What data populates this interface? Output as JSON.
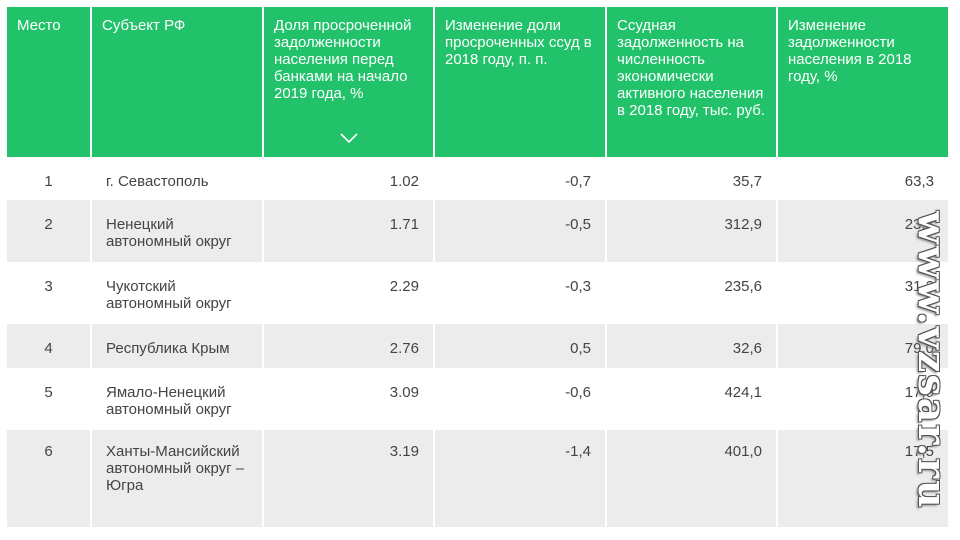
{
  "table": {
    "headers": [
      "Место",
      "Субъект РФ",
      "Доля просроченной задолженности населения перед банками на начало 2019 года, %",
      "Изменение доли просроченных ссуд в 2018 году, п. п.",
      "Ссудная задолженность на численность экономически активного населения в 2018 году, тыс. руб.",
      "Изменение задолженности населения в 2018 году, %"
    ],
    "sort_icon": "chevron-down-icon",
    "rows": [
      [
        "1",
        "г. Севастополь",
        "1.02",
        "-0,7",
        "35,7",
        "63,3"
      ],
      [
        "2",
        "Ненецкий автономный округ",
        "1.71",
        "-0,5",
        "312,9",
        "23,3"
      ],
      [
        "3",
        "Чукотский автономный округ",
        "2.29",
        "-0,3",
        "235,6",
        "31,2"
      ],
      [
        "4",
        "Республика Крым",
        "2.76",
        "0,5",
        "32,6",
        "79,0"
      ],
      [
        "5",
        "Ямало-Ненецкий автономный округ",
        "3.09",
        "-0,6",
        "424,1",
        "17,9"
      ],
      [
        "6",
        "Ханты-Мансийский автономный округ – Югра",
        "3.19",
        "-1,4",
        "401,0",
        "17,5"
      ]
    ]
  },
  "colors": {
    "header_bg": "#22c26b",
    "stripe": "#ececec",
    "text": "#444444"
  },
  "watermark": "www.vzsar.ru"
}
